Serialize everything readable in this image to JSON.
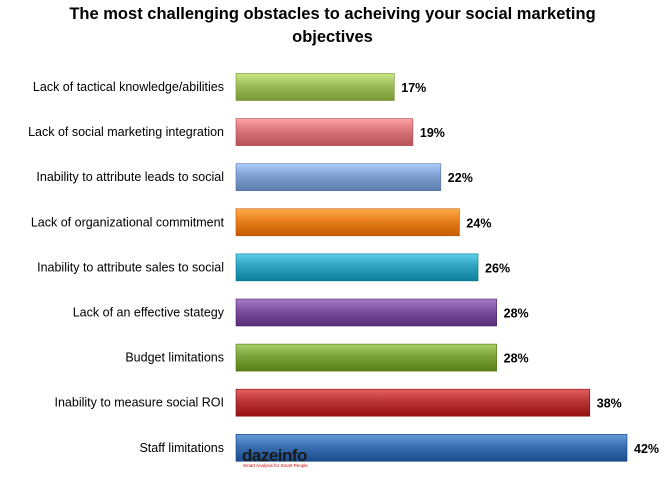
{
  "chart_data": {
    "type": "bar",
    "orientation": "horizontal",
    "title_lines": [
      "The most challenging obstacles to acheiving your social marketing",
      "objectives"
    ],
    "categories": [
      "Lack of tactical knowledge/abilities",
      "Lack of social marketing integration",
      "Inability to attribute leads to social",
      "Lack of organizational commitment",
      "Inability to attribute sales to social",
      "Lack of an effective stategy",
      "Budget limitations",
      "Inability to measure social ROI",
      "Staff limitations"
    ],
    "values": [
      17,
      19,
      22,
      24,
      26,
      28,
      28,
      38,
      42
    ],
    "value_labels": [
      "17%",
      "19%",
      "22%",
      "24%",
      "26%",
      "28%",
      "28%",
      "38%",
      "42%"
    ],
    "colors": [
      "#9bbb59",
      "#d9747a",
      "#7f9fd0",
      "#e87f1c",
      "#2fa3bd",
      "#7a4f9b",
      "#7ba23a",
      "#b93434",
      "#3b6fb0"
    ],
    "value_unit": "%",
    "xlim": [
      0,
      42
    ],
    "grid": false
  },
  "watermark": {
    "logo_text": "dazeinfo",
    "tagline": "Smart Analysis for Smart People"
  }
}
